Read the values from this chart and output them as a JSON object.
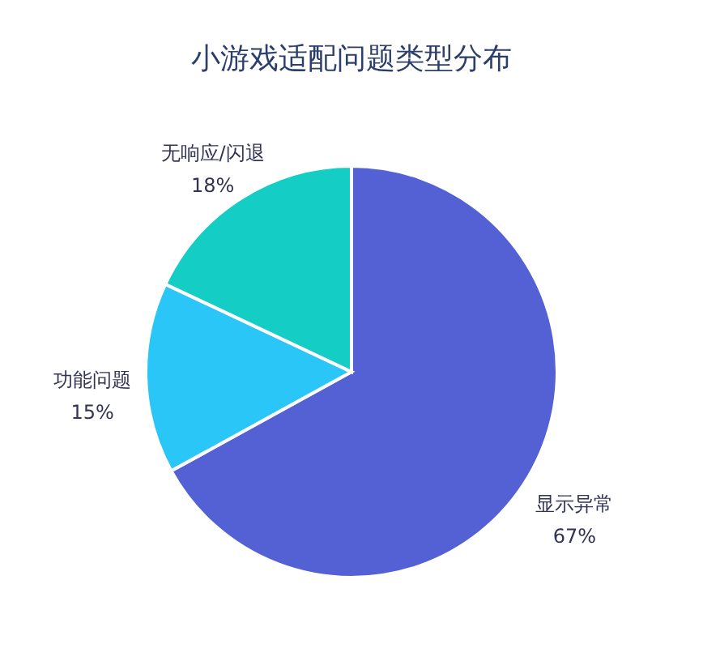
{
  "chart_data": {
    "type": "pie",
    "title": "小游戏适配问题类型分布",
    "categories": [
      "显示异常",
      "功能问题",
      "无响应/闪退"
    ],
    "values": [
      67,
      15,
      18
    ],
    "value_labels": [
      "67%",
      "15%",
      "18%"
    ],
    "colors": [
      "#5361d4",
      "#2ac6f7",
      "#14cdc4"
    ],
    "legend": false
  }
}
